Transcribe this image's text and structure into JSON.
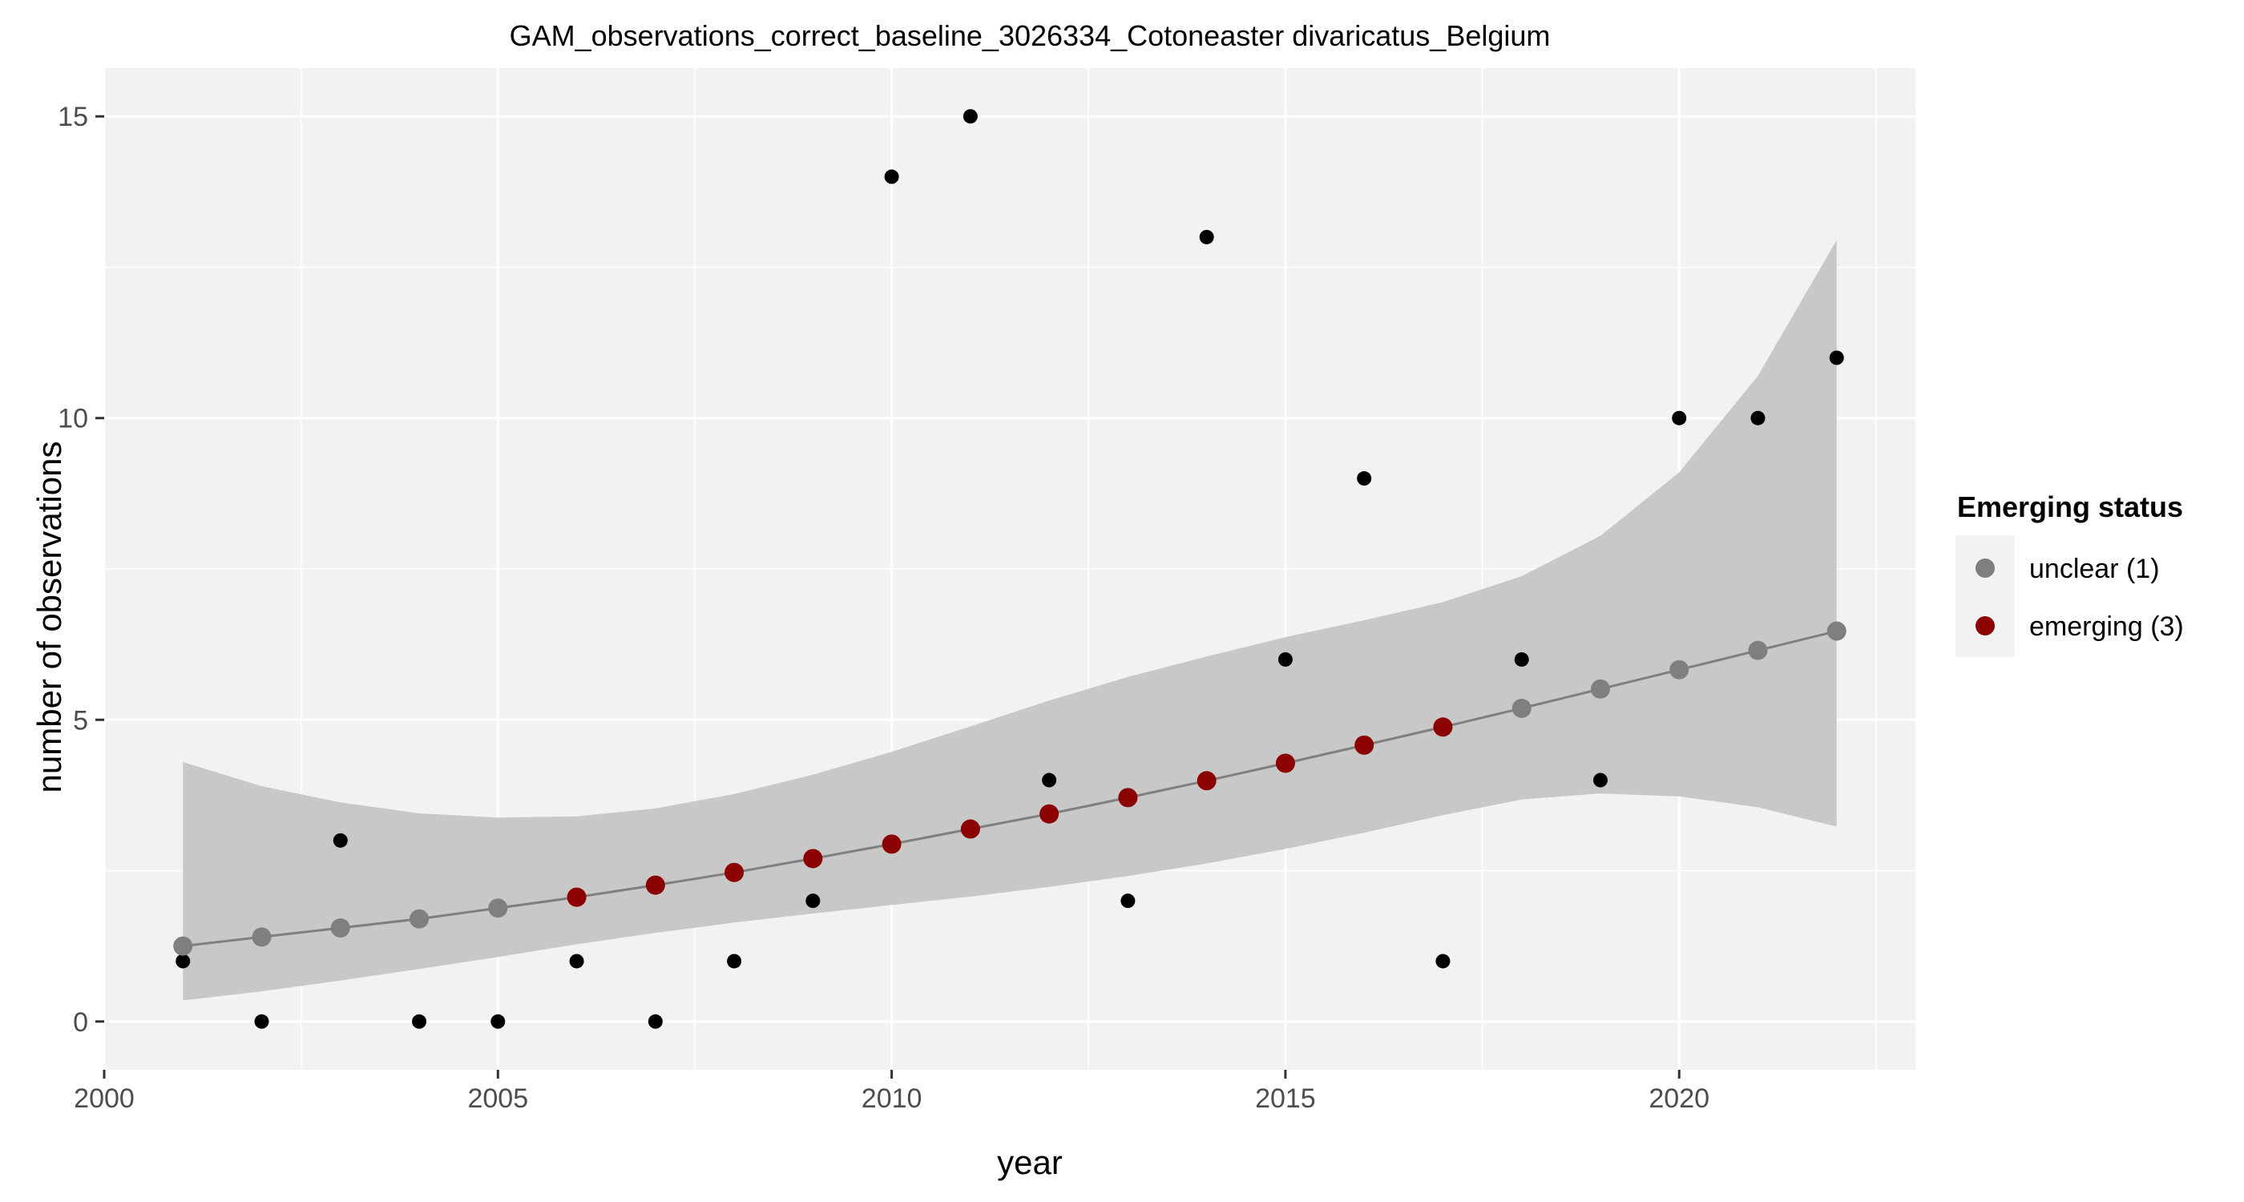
{
  "chart_data": {
    "type": "scatter",
    "title": "GAM_observations_correct_baseline_3026334_Cotoneaster divaricatus_Belgium",
    "xlabel": "year",
    "ylabel": "number of observations",
    "xlim": [
      2000,
      2023
    ],
    "ylim": [
      -0.8,
      15.8
    ],
    "x_ticks": [
      2000,
      2005,
      2010,
      2015,
      2020
    ],
    "y_ticks": [
      0,
      5,
      10,
      15
    ],
    "grid": true,
    "observations": {
      "x": [
        2001,
        2002,
        2003,
        2004,
        2005,
        2006,
        2007,
        2008,
        2009,
        2010,
        2011,
        2012,
        2013,
        2014,
        2015,
        2016,
        2017,
        2018,
        2019,
        2020,
        2021,
        2022
      ],
      "y": [
        1,
        0,
        3,
        0,
        0,
        1,
        0,
        1,
        2,
        14,
        15,
        4,
        2,
        13,
        6,
        9,
        1,
        6,
        4,
        10,
        10,
        11
      ],
      "color": "#000000"
    },
    "fit": {
      "x": [
        2001,
        2002,
        2003,
        2004,
        2005,
        2006,
        2007,
        2008,
        2009,
        2010,
        2011,
        2012,
        2013,
        2014,
        2015,
        2016,
        2017,
        2018,
        2019,
        2020,
        2021,
        2022
      ],
      "y": [
        1.25,
        1.4,
        1.55,
        1.7,
        1.88,
        2.06,
        2.26,
        2.47,
        2.7,
        2.94,
        3.19,
        3.44,
        3.71,
        3.99,
        4.28,
        4.58,
        4.88,
        5.19,
        5.51,
        5.83,
        6.15,
        6.47
      ],
      "lower": [
        0.35,
        0.5,
        0.68,
        0.87,
        1.07,
        1.28,
        1.47,
        1.64,
        1.79,
        1.93,
        2.07,
        2.23,
        2.41,
        2.62,
        2.86,
        3.13,
        3.42,
        3.68,
        3.78,
        3.73,
        3.55,
        3.23
      ],
      "upper": [
        4.3,
        3.9,
        3.63,
        3.45,
        3.38,
        3.4,
        3.53,
        3.77,
        4.09,
        4.47,
        4.89,
        5.32,
        5.71,
        6.05,
        6.37,
        6.65,
        6.95,
        7.38,
        8.05,
        9.1,
        10.7,
        12.95
      ],
      "status": [
        "unclear",
        "unclear",
        "unclear",
        "unclear",
        "unclear",
        "emerging",
        "emerging",
        "emerging",
        "emerging",
        "emerging",
        "emerging",
        "emerging",
        "emerging",
        "emerging",
        "emerging",
        "emerging",
        "emerging",
        "unclear",
        "unclear",
        "unclear",
        "unclear",
        "unclear"
      ],
      "line_color": "#7f7f7f",
      "ribbon_color": "#c8c8c8"
    },
    "legend": {
      "title": "Emerging status",
      "placement": "right",
      "entries": [
        {
          "key": "unclear",
          "label": "unclear (1)",
          "color": "#7f7f7f"
        },
        {
          "key": "emerging",
          "label": "emerging (3)",
          "color": "#8b0000"
        }
      ]
    },
    "panel_color": "#f2f2f2",
    "grid_color": "#ffffff"
  }
}
